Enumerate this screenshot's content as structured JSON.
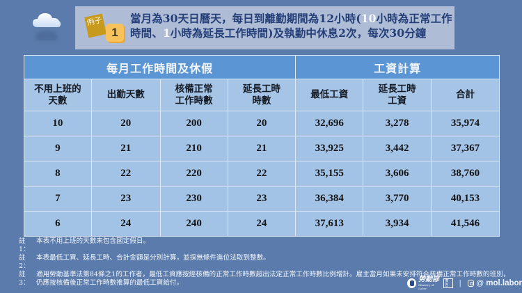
{
  "banner": {
    "tag_label": "例子",
    "example_number": "1",
    "line1_pre": "當月為30天日曆天，每日到離勤期間為12小時(",
    "line1_hl": "10",
    "line1_post": "小時為正常工作",
    "line2_pre": "時間、",
    "line2_hl": "1",
    "line2_post": "小時為延長工作時間)及執勤中休息2次，每次30分鐘"
  },
  "table": {
    "group_headers": [
      "每月工作時間及休假",
      "工資計算"
    ],
    "columns": [
      "不用上班的\n天數",
      "出勤天數",
      "核備正常\n工作時數",
      "延長工時\n時數",
      "最低工資",
      "延長工時\n工資",
      "合計"
    ],
    "column_lines": [
      [
        "不用上班的",
        "天數"
      ],
      [
        "出勤天數"
      ],
      [
        "核備正常",
        "工作時數"
      ],
      [
        "延長工時",
        "時數"
      ],
      [
        "最低工資"
      ],
      [
        "延長工時",
        "工資"
      ],
      [
        "合計"
      ]
    ],
    "rows": [
      [
        "10",
        "20",
        "200",
        "20",
        "32,696",
        "3,278",
        "35,974"
      ],
      [
        "9",
        "21",
        "210",
        "21",
        "33,925",
        "3,442",
        "37,367"
      ],
      [
        "8",
        "22",
        "220",
        "22",
        "35,155",
        "3,606",
        "38,760"
      ],
      [
        "7",
        "23",
        "230",
        "23",
        "36,384",
        "3,770",
        "40,153"
      ],
      [
        "6",
        "24",
        "240",
        "24",
        "37,613",
        "3,934",
        "41,546"
      ]
    ]
  },
  "notes": [
    {
      "key": "註1：",
      "text": "本表不用上班的天數未包含國定假日。"
    },
    {
      "key": "註2：",
      "text": "本表最低工資、延長工時、合計金額是分別計算，並採無條件進位法取到整數。"
    },
    {
      "key": "註3：",
      "text": "適用勞動基準法第84條之1的工作者，最低工資應按經核備的正常工作時數超出法定正常工作時數比例增計。雇主當月如果未安排符合核備正常工作時數的班別，仍應按核備後正常工作時數推算的最低工資給付。"
    }
  ],
  "footer": {
    "logo_cn": "勞動部",
    "logo_en": "Ministry of Labor",
    "logo_badge": "廣告",
    "separator": "|",
    "threads_glyph": "@",
    "handle": "mol.labor"
  }
}
